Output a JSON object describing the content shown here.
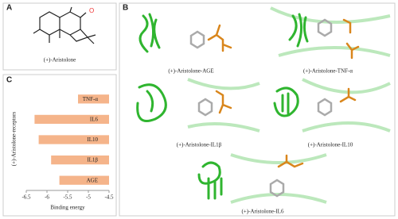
{
  "panels": [
    {
      "label": "A",
      "caption": "(+)-Aristolone",
      "atom_label": "O"
    },
    {
      "label": "B",
      "captions": [
        "(+)-Aristolone-AGE",
        "(+)-Aristolone-TNF-α",
        "(+)-Aristolone-IL1β",
        "(+)-Aristolone-IL10",
        "(+)-Aristolone-IL6"
      ]
    },
    {
      "label": "C"
    }
  ],
  "chart_data": {
    "type": "hbar",
    "ylabel": "(+)-Aristolone-receptors",
    "xlabel": "Binding energy",
    "categories": [
      "TNF-α",
      "IL6",
      "IL10",
      "IL1β",
      "AGE"
    ],
    "values": [
      -5.25,
      -6.3,
      -6.2,
      -5.9,
      -5.7
    ],
    "color": "#f5b48a",
    "xlim": [
      -6.5,
      -4.5
    ],
    "xticks": [
      -6.5,
      -6,
      -5.5,
      -5,
      -4.5
    ],
    "grid": false
  }
}
